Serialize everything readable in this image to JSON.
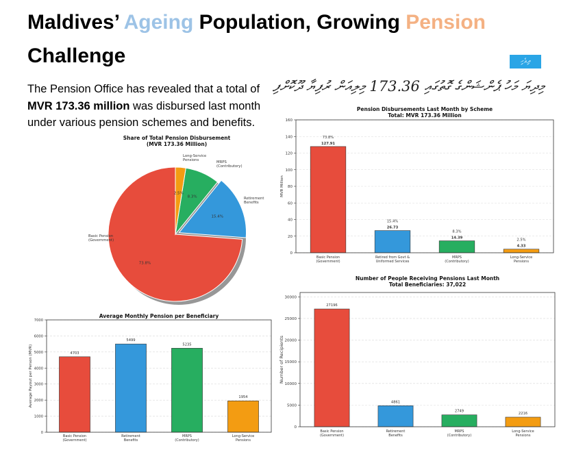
{
  "article": {
    "headline_parts": [
      {
        "text": "Maldives’ ",
        "accent": "none"
      },
      {
        "text": "Ageing",
        "accent": "blue"
      },
      {
        "text": " Population, Growing ",
        "accent": "none"
      },
      {
        "text": "Pension",
        "accent": "orange"
      },
      {
        "text": " Challenge",
        "accent": "none"
      }
    ],
    "language_badge": "ދިވެހި",
    "dhivehi_headline": "މިދިޔަ މަހު ޕެންޝަންގެ ގޮތުގައި 173.36 މިލިއަން ރުފިޔާ ދޫކޮށްފި",
    "intro": {
      "before": "The Pension Office has revealed that a total of ",
      "highlight": "MVR 173.36 million",
      "after": " was disbursed last month under various pension schemes and benefits."
    },
    "colors": {
      "accent_blue": "#9dc3e6",
      "accent_orange": "#f4b183",
      "badge": "#2aa5e6"
    }
  },
  "chart_data": [
    {
      "id": "share",
      "type": "pie",
      "title_lines": [
        "Share of Total Pension Disbursement",
        "(MVR 173.36 Million)"
      ],
      "slices": [
        {
          "label": "Basic Pension\n(Government)",
          "value": 73.8,
          "pct_label": "73.8%",
          "color": "#e74c3c"
        },
        {
          "label": "Retirement\nBenefits",
          "value": 15.4,
          "pct_label": "15.4%",
          "color": "#3498db"
        },
        {
          "label": "MRPS\n(Contributory)",
          "value": 8.3,
          "pct_label": "8.3%",
          "color": "#27ae60"
        },
        {
          "label": "Long-Service\nPensions",
          "value": 2.5,
          "pct_label": "2.5%",
          "color": "#f39c12"
        }
      ],
      "shadow": true,
      "explode": "Retirement Benefits"
    },
    {
      "id": "scheme",
      "type": "bar",
      "title_lines": [
        "Pension Disbursements Last Month by Scheme",
        "Total: MVR 173.36 Million"
      ],
      "ylabel": "MVR Million",
      "ylim": [
        0,
        160
      ],
      "yticks": [
        0,
        20,
        40,
        60,
        80,
        100,
        120,
        140,
        160
      ],
      "grid": true,
      "categories": [
        "Basic Pension\n(Government)",
        "Retired from Govt &\nUniformed Services",
        "MRPS\n(Contributory)",
        "Long-Service\nPensions"
      ],
      "values": [
        127.91,
        26.73,
        14.39,
        4.33
      ],
      "value_labels": [
        "127.91",
        "26.73",
        "14.39",
        "4.33"
      ],
      "pct_labels": [
        "73.8%",
        "15.4%",
        "8.3%",
        "2.5%"
      ],
      "colors": [
        "#e74c3c",
        "#3498db",
        "#27ae60",
        "#f39c12"
      ]
    },
    {
      "id": "average",
      "type": "bar",
      "title_lines": [
        "Average Monthly Pension per Beneficiary"
      ],
      "ylabel": "Average Payout per Person (MVR)",
      "ylim": [
        0,
        7000
      ],
      "yticks": [
        0,
        1000,
        2000,
        3000,
        4000,
        5000,
        6000,
        7000
      ],
      "grid": true,
      "categories": [
        "Basic Pension\n(Government)",
        "Retirement\nBenefits",
        "MRPS\n(Contributory)",
        "Long-Service\nPensions"
      ],
      "values": [
        4703,
        5499,
        5235,
        1954
      ],
      "value_labels": [
        "4703",
        "5499",
        "5235",
        "1954"
      ],
      "colors": [
        "#e74c3c",
        "#3498db",
        "#27ae60",
        "#f39c12"
      ]
    },
    {
      "id": "people",
      "type": "bar",
      "title_lines": [
        "Number of People Receiving Pensions Last Month",
        "Total Beneficiaries: 37,022"
      ],
      "ylabel": "Number of Recipients",
      "ylim": [
        0,
        31000
      ],
      "yticks": [
        0,
        5000,
        10000,
        15000,
        20000,
        25000,
        30000
      ],
      "grid": true,
      "categories": [
        "Basic Pension\n(Government)",
        "Retirement\nBenefits",
        "MRPS\n(Contributory)",
        "Long-Service\nPensions"
      ],
      "values": [
        27196,
        4861,
        2749,
        2216
      ],
      "value_labels": [
        "27196",
        "4861",
        "2749",
        "2216"
      ],
      "colors": [
        "#e74c3c",
        "#3498db",
        "#27ae60",
        "#f39c12"
      ]
    }
  ]
}
